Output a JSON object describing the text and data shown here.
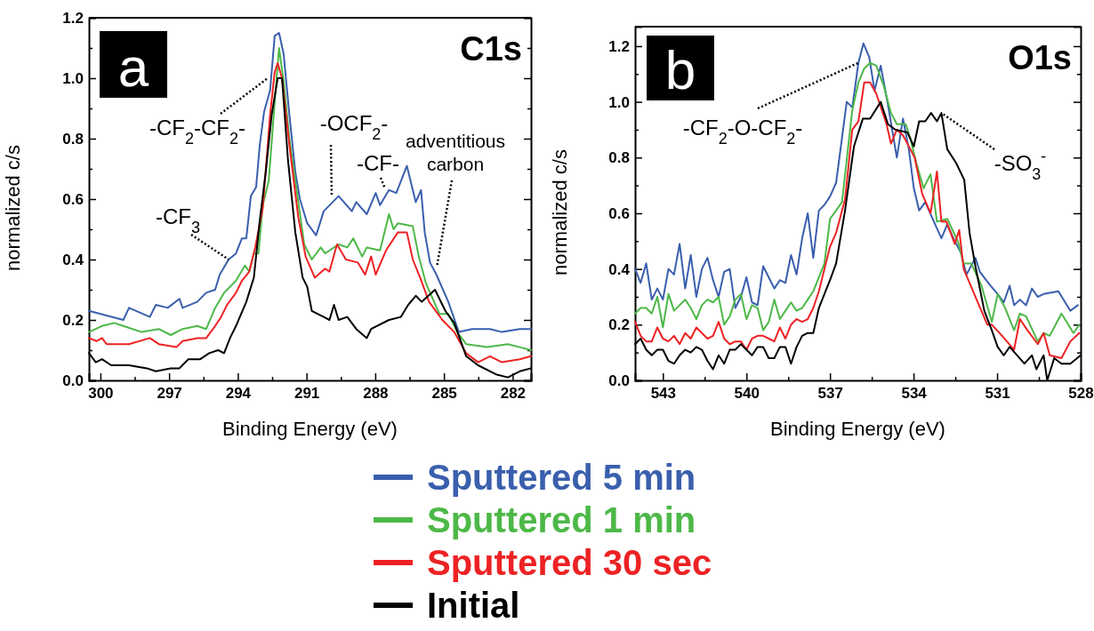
{
  "chart_data": [
    {
      "type": "line",
      "title": "C1s",
      "xlabel": "Binding Energy (eV)",
      "ylabel": "normalized c/s",
      "xlim": [
        300.5,
        281.2
      ],
      "xticks": [
        300,
        {
          "value": 298.5,
          "label": null
        },
        297,
        {
          "value": 295.5,
          "label": null
        },
        294,
        {
          "value": 292.5,
          "label": null
        },
        291,
        {
          "value": 289.5,
          "label": null
        },
        288,
        {
          "value": 286.5,
          "label": null
        },
        285,
        {
          "value": 283.5,
          "label": null
        },
        282
      ],
      "ylim": [
        0,
        1.2
      ],
      "yticks": [
        {
          "value": 0,
          "label": "0.0"
        },
        {
          "value": 0.1,
          "label": null
        },
        {
          "value": 0.2,
          "label": "0.2"
        },
        {
          "value": 0.3,
          "label": null
        },
        {
          "value": 0.4,
          "label": "0.4"
        },
        {
          "value": 0.5,
          "label": null
        },
        {
          "value": 0.6,
          "label": "0.6"
        },
        {
          "value": 0.7,
          "label": null
        },
        {
          "value": 0.8,
          "label": "0.8"
        },
        {
          "value": 0.9,
          "label": null
        },
        {
          "value": 1.0,
          "label": "1.0"
        },
        {
          "value": 1.1,
          "label": null
        },
        {
          "value": 1.2,
          "label": "1.2"
        }
      ],
      "grid": false,
      "legend": "bottom",
      "line_style": "solid",
      "marker": "none",
      "annotations": [
        "a",
        {
          "text": "-CF$_{2}$-CF$_{2}$-",
          "x": 292.7,
          "y": 1.0
        },
        {
          "text": "-OCF$_{2}$-",
          "x": 289.9,
          "y": 0.61
        },
        {
          "text": "-CF-",
          "x": 287.6,
          "y": 0.64
        },
        {
          "text": "adventitious carbon",
          "x": 285.3,
          "y": 0.38
        },
        {
          "text": "-CF$_{3}$",
          "x": 294.4,
          "y": 0.4
        }
      ],
      "series": [
        {
          "name": "Sputtered 5 min",
          "color": "#3a5fad",
          "x": [
            300.5,
            299.0,
            298.75,
            297.84,
            297.58,
            297.06,
            296.55,
            296.41,
            295.77,
            295.38,
            294.99,
            294.79,
            294.4,
            294.08,
            293.82,
            293.63,
            293.43,
            293.2,
            293.04,
            292.85,
            292.59,
            292.39,
            292.2,
            292.0,
            291.75,
            291.49,
            291.29,
            290.97,
            290.58,
            290.25,
            289.6,
            289.02,
            288.83,
            288.37,
            287.98,
            287.79,
            287.4,
            287.08,
            286.62,
            286.23,
            286.0,
            285.84,
            285.61,
            285.33,
            284.81,
            284.35,
            283.77,
            282.99,
            282.47,
            281.69,
            281.2
          ],
          "values": [
            0.23,
            0.2,
            0.24,
            0.21,
            0.25,
            0.24,
            0.27,
            0.24,
            0.26,
            0.29,
            0.3,
            0.35,
            0.4,
            0.42,
            0.47,
            0.47,
            0.61,
            0.64,
            0.78,
            0.89,
            0.96,
            1.14,
            1.15,
            1.08,
            0.88,
            0.69,
            0.6,
            0.52,
            0.48,
            0.56,
            0.61,
            0.56,
            0.59,
            0.55,
            0.62,
            0.58,
            0.63,
            0.62,
            0.71,
            0.59,
            0.63,
            0.49,
            0.39,
            0.35,
            0.26,
            0.16,
            0.17,
            0.17,
            0.16,
            0.17,
            0.17
          ]
        },
        {
          "name": "Sputtered 1 min",
          "color": "#4db848",
          "x": [
            300.5,
            299.93,
            299.4,
            299.0,
            298.2,
            297.45,
            296.93,
            296.41,
            295.77,
            295.38,
            294.99,
            294.6,
            294.08,
            293.69,
            293.5,
            293.3,
            293.1,
            292.91,
            292.65,
            292.39,
            292.2,
            292.0,
            291.75,
            291.36,
            291.1,
            290.77,
            290.38,
            290.19,
            289.6,
            289.22,
            288.96,
            288.57,
            288.37,
            287.79,
            287.4,
            287.2,
            287.01,
            286.36,
            286.1,
            285.78,
            285.2,
            284.81,
            284.42,
            284.03,
            283.12,
            282.21,
            281.69,
            281.2
          ],
          "values": [
            0.16,
            0.18,
            0.19,
            0.18,
            0.16,
            0.17,
            0.15,
            0.17,
            0.18,
            0.17,
            0.24,
            0.29,
            0.33,
            0.38,
            0.36,
            0.42,
            0.42,
            0.58,
            0.66,
            0.92,
            1.1,
            0.99,
            0.8,
            0.59,
            0.45,
            0.4,
            0.44,
            0.42,
            0.45,
            0.44,
            0.47,
            0.41,
            0.44,
            0.43,
            0.55,
            0.5,
            0.52,
            0.51,
            0.41,
            0.32,
            0.22,
            0.22,
            0.16,
            0.12,
            0.11,
            0.12,
            0.11,
            0.1
          ]
        },
        {
          "name": "Sputtered 30 sec",
          "color": "#ed2224",
          "x": [
            300.5,
            300.17,
            299.93,
            299.73,
            298.75,
            297.84,
            297.45,
            296.68,
            296.41,
            295.77,
            295.38,
            294.99,
            294.73,
            294.47,
            294.08,
            293.82,
            293.5,
            293.24,
            292.91,
            292.59,
            292.39,
            292.26,
            292.07,
            291.75,
            291.36,
            291.04,
            290.64,
            290.19,
            290.0,
            289.67,
            289.28,
            288.76,
            288.44,
            288.18,
            287.98,
            287.53,
            287.01,
            286.62,
            286.36,
            286.04,
            285.65,
            285.07,
            284.55,
            284.03,
            283.51,
            282.99,
            282.47,
            281.69,
            281.2
          ],
          "values": [
            0.14,
            0.13,
            0.14,
            0.12,
            0.12,
            0.14,
            0.12,
            0.11,
            0.13,
            0.14,
            0.14,
            0.18,
            0.21,
            0.25,
            0.29,
            0.33,
            0.36,
            0.44,
            0.57,
            0.88,
            1.02,
            1.05,
            1.0,
            0.78,
            0.54,
            0.41,
            0.34,
            0.37,
            0.36,
            0.45,
            0.4,
            0.39,
            0.35,
            0.41,
            0.35,
            0.43,
            0.49,
            0.49,
            0.4,
            0.34,
            0.26,
            0.2,
            0.16,
            0.09,
            0.06,
            0.08,
            0.06,
            0.07,
            0.08
          ]
        },
        {
          "name": "Initial",
          "color": "#000000",
          "x": [
            300.5,
            300.2,
            299.93,
            299.53,
            298.75,
            297.97,
            297.58,
            296.93,
            296.55,
            296.16,
            295.64,
            295.25,
            294.86,
            294.6,
            294.34,
            294.08,
            293.63,
            293.3,
            293.04,
            292.78,
            292.52,
            292.26,
            292.07,
            291.81,
            291.49,
            291.17,
            290.97,
            290.77,
            290.25,
            290.0,
            289.8,
            289.6,
            289.22,
            288.83,
            288.37,
            288.18,
            287.4,
            286.88,
            286.56,
            286.23,
            285.97,
            285.39,
            284.94,
            284.55,
            284.03,
            283.51,
            282.73,
            282.21,
            281.69,
            281.2
          ],
          "values": [
            0.09,
            0.06,
            0.07,
            0.05,
            0.05,
            0.04,
            0.03,
            0.04,
            0.04,
            0.07,
            0.07,
            0.09,
            0.1,
            0.09,
            0.14,
            0.18,
            0.26,
            0.34,
            0.53,
            0.69,
            0.88,
            1.0,
            1.0,
            0.73,
            0.49,
            0.34,
            0.31,
            0.23,
            0.21,
            0.2,
            0.25,
            0.2,
            0.21,
            0.17,
            0.14,
            0.17,
            0.2,
            0.21,
            0.25,
            0.28,
            0.26,
            0.3,
            0.23,
            0.19,
            0.08,
            0.05,
            0.02,
            0.01,
            0.03,
            0.04
          ]
        }
      ]
    },
    {
      "type": "line",
      "title": "O1s",
      "xlabel": "Binding Energy (eV)",
      "ylabel": "normalized c/s",
      "xlim": [
        544,
        528
      ],
      "xticks": [
        543,
        {
          "value": 541.5,
          "label": null
        },
        540,
        {
          "value": 538.5,
          "label": null
        },
        537,
        {
          "value": 535.5,
          "label": null
        },
        534,
        {
          "value": 532.5,
          "label": null
        },
        531,
        {
          "value": 529.5,
          "label": null
        },
        528
      ],
      "ylim": [
        0,
        1.27
      ],
      "yticks": [
        {
          "value": 0,
          "label": "0.0"
        },
        {
          "value": 0.1,
          "label": null
        },
        {
          "value": 0.2,
          "label": "0.2"
        },
        {
          "value": 0.3,
          "label": null
        },
        {
          "value": 0.4,
          "label": "0.4"
        },
        {
          "value": 0.5,
          "label": null
        },
        {
          "value": 0.6,
          "label": "0.6"
        },
        {
          "value": 0.7,
          "label": null
        },
        {
          "value": 0.8,
          "label": "0.8"
        },
        {
          "value": 0.9,
          "label": null
        },
        {
          "value": 1.0,
          "label": "1.0"
        },
        {
          "value": 1.1,
          "label": null
        },
        {
          "value": 1.2,
          "label": "1.2"
        }
      ],
      "grid": false,
      "line_style": "solid",
      "marker": "none",
      "annotations": [
        "b",
        {
          "text": "-CF$_{2}$-O-CF$_{2}$-",
          "x": 535.98,
          "y": 1.14
        },
        {
          "text": "-SO$_{3}$$^{-}$",
          "x": 533.0,
          "y": 0.96
        }
      ],
      "series": [
        {
          "color": "#3a5fad",
          "x": [
            544,
            543.8,
            543.6,
            543.4,
            543.2,
            543,
            542.8,
            542.6,
            542.4,
            542.2,
            542,
            541.8,
            541.6,
            541.4,
            541.2,
            541,
            540.8,
            540.6,
            540.4,
            540.2,
            540,
            539.8,
            539.6,
            539.4,
            539.2,
            539,
            538.8,
            538.6,
            538.4,
            538.2,
            538,
            537.8,
            537.6,
            537.4,
            537.2,
            537,
            536.78,
            536.4,
            536.2,
            535.98,
            535.8,
            535.59,
            535.4,
            535.18,
            534.92,
            534.6,
            534.38,
            534.17,
            533.99,
            533.8,
            533.58,
            533.27,
            533.0,
            532.79,
            532.52,
            532.31,
            532.1,
            531.78,
            531.62,
            531.24,
            530.98,
            530.76,
            530.55,
            530.39,
            530.18,
            529.96,
            529.75,
            529.54,
            529.33,
            528.8,
            528.37,
            528.1
          ],
          "values": [
            0.4,
            0.35,
            0.42,
            0.29,
            0.33,
            0.29,
            0.4,
            0.38,
            0.49,
            0.33,
            0.45,
            0.3,
            0.4,
            0.44,
            0.36,
            0.3,
            0.39,
            0.4,
            0.26,
            0.3,
            0.37,
            0.28,
            0.27,
            0.41,
            0.37,
            0.33,
            0.36,
            0.35,
            0.45,
            0.38,
            0.51,
            0.6,
            0.44,
            0.61,
            0.63,
            0.66,
            0.71,
            1.0,
            0.98,
            1.14,
            1.21,
            1.16,
            1.04,
            1.13,
            0.99,
            0.8,
            0.94,
            0.83,
            0.69,
            0.61,
            0.64,
            0.57,
            0.51,
            0.56,
            0.5,
            0.46,
            0.38,
            0.44,
            0.39,
            0.34,
            0.31,
            0.28,
            0.34,
            0.27,
            0.29,
            0.27,
            0.33,
            0.3,
            0.31,
            0.32,
            0.25,
            0.27
          ]
        },
        {
          "color": "#4db848",
          "x": [
            544,
            543.8,
            543.6,
            543.4,
            543.2,
            543,
            542.8,
            542.6,
            542.4,
            542.2,
            542,
            541.8,
            541.6,
            541.4,
            541.2,
            541,
            540.8,
            540.6,
            540.4,
            540.2,
            540,
            539.8,
            539.6,
            539.4,
            539.2,
            539,
            538.8,
            538.6,
            538.4,
            538.2,
            538,
            537.8,
            537.6,
            537.4,
            537.2,
            537,
            536.78,
            536.57,
            536.2,
            535.98,
            535.77,
            535.56,
            535.34,
            535.08,
            534.81,
            534.6,
            534.28,
            534.12,
            533.9,
            533.64,
            533.39,
            533.16,
            532.79,
            532.41,
            532.2,
            531.93,
            531.56,
            531.19,
            530.98,
            530.71,
            530.39,
            530.18,
            529.96,
            529.54,
            529.33,
            529.11,
            528.69,
            528.26,
            528.05
          ],
          "values": [
            0.24,
            0.26,
            0.26,
            0.24,
            0.3,
            0.19,
            0.31,
            0.25,
            0.27,
            0.29,
            0.26,
            0.22,
            0.27,
            0.29,
            0.28,
            0.3,
            0.2,
            0.23,
            0.29,
            0.31,
            0.22,
            0.27,
            0.26,
            0.18,
            0.21,
            0.29,
            0.22,
            0.25,
            0.28,
            0.25,
            0.26,
            0.29,
            0.32,
            0.37,
            0.42,
            0.58,
            0.61,
            0.64,
            0.97,
            1.07,
            1.12,
            1.14,
            1.13,
            1.06,
            0.96,
            0.92,
            0.92,
            0.87,
            0.78,
            0.69,
            0.74,
            0.57,
            0.58,
            0.5,
            0.42,
            0.42,
            0.34,
            0.21,
            0.31,
            0.26,
            0.18,
            0.24,
            0.23,
            0.14,
            0.17,
            0.16,
            0.24,
            0.17,
            0.2
          ]
        },
        {
          "color": "#ed2224",
          "x": [
            544,
            543.8,
            543.6,
            543.4,
            543.2,
            543,
            542.8,
            542.6,
            542.4,
            542.2,
            542,
            541.8,
            541.6,
            541.4,
            541.2,
            541,
            540.8,
            540.6,
            540.4,
            540.2,
            540,
            539.8,
            539.6,
            539.4,
            539.2,
            539,
            538.8,
            538.6,
            538.4,
            538.2,
            538,
            537.8,
            537.6,
            537.4,
            537.2,
            537,
            536.78,
            536.46,
            536.2,
            535.98,
            535.77,
            535.56,
            535.34,
            534.97,
            534.81,
            534.6,
            534.38,
            533.96,
            533.69,
            533.39,
            533.16,
            533.0,
            532.82,
            532.52,
            532.36,
            532.2,
            531.78,
            531.35,
            531.19,
            530.82,
            530.39,
            530.18,
            529.91,
            529.54,
            529.33,
            529.11,
            528.69,
            528.37,
            528.05
          ],
          "values": [
            0.21,
            0.16,
            0.14,
            0.14,
            0.19,
            0.15,
            0.14,
            0.16,
            0.13,
            0.17,
            0.15,
            0.19,
            0.17,
            0.15,
            0.16,
            0.21,
            0.15,
            0.13,
            0.14,
            0.14,
            0.11,
            0.15,
            0.16,
            0.16,
            0.15,
            0.14,
            0.19,
            0.15,
            0.2,
            0.22,
            0.21,
            0.22,
            0.26,
            0.32,
            0.4,
            0.48,
            0.53,
            0.65,
            0.9,
            0.93,
            1.07,
            1.07,
            1.03,
            0.92,
            0.85,
            0.9,
            0.88,
            0.8,
            0.67,
            0.6,
            0.75,
            0.57,
            0.57,
            0.49,
            0.54,
            0.4,
            0.3,
            0.2,
            0.2,
            0.16,
            0.11,
            0.22,
            0.18,
            0.13,
            0.17,
            0.09,
            0.08,
            0.14,
            0.17
          ]
        },
        {
          "color": "#000000",
          "x": [
            544,
            543.8,
            543.6,
            543.4,
            543.2,
            543,
            542.8,
            542.6,
            542.4,
            542.2,
            542,
            541.8,
            541.6,
            541.4,
            541.2,
            541,
            540.8,
            540.6,
            540.4,
            540.2,
            540,
            539.8,
            539.6,
            539.4,
            539.2,
            539,
            538.8,
            538.6,
            538.4,
            538.2,
            538,
            537.8,
            537.6,
            537.4,
            537.2,
            537,
            536.78,
            536.46,
            536.14,
            535.82,
            535.56,
            535.18,
            534.92,
            534.65,
            534.22,
            533.99,
            533.8,
            533.58,
            533.37,
            533.16,
            533.0,
            532.79,
            532.47,
            532.18,
            531.99,
            531.78,
            531.46,
            531.19,
            530.98,
            530.76,
            530.55,
            530.28,
            530.02,
            529.75,
            529.59,
            529.33,
            529.2,
            528.95,
            528.69,
            528.37,
            528.0
          ],
          "values": [
            0.13,
            0.15,
            0.11,
            0.09,
            0.11,
            0.11,
            0.07,
            0.06,
            0.09,
            0.11,
            0.1,
            0.12,
            0.11,
            0.07,
            0.04,
            0.09,
            0.06,
            0.11,
            0.11,
            0.13,
            0.11,
            0.09,
            0.12,
            0.12,
            0.08,
            0.08,
            0.12,
            0.12,
            0.06,
            0.12,
            0.16,
            0.17,
            0.17,
            0.26,
            0.31,
            0.36,
            0.42,
            0.61,
            0.84,
            0.94,
            0.94,
            1.0,
            0.92,
            0.9,
            0.89,
            0.84,
            0.93,
            0.93,
            0.96,
            0.93,
            0.96,
            0.83,
            0.78,
            0.72,
            0.53,
            0.41,
            0.25,
            0.18,
            0.12,
            0.09,
            0.12,
            0.09,
            0.06,
            0.09,
            0.04,
            0.09,
            0.0,
            0.08,
            0.06,
            0.06,
            0.09
          ]
        }
      ]
    }
  ]
}
